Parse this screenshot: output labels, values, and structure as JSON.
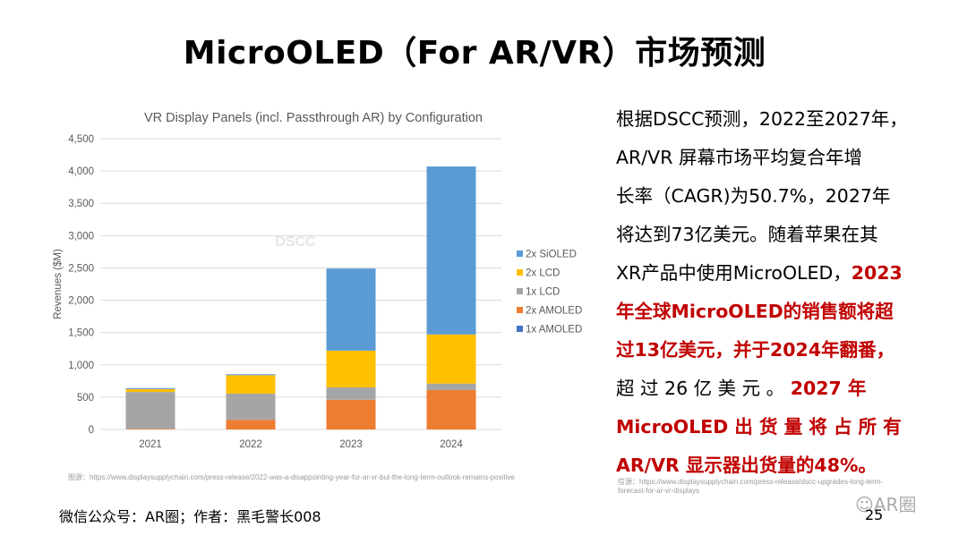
{
  "slide": {
    "title": "MicroOLED（For AR/VR）市场预测",
    "body_lines": [
      [
        {
          "t": "根据DSCC预测，2022至2027年，",
          "red": false
        }
      ],
      [
        {
          "t": "AR/VR 屏幕市场平均复合年增",
          "red": false
        }
      ],
      [
        {
          "t": "长率（CAGR)为50.7%，2027年",
          "red": false
        }
      ],
      [
        {
          "t": "将达到73亿美元。随着苹果在其",
          "red": false
        }
      ],
      [
        {
          "t": "XR产品中使用MicroOLED，",
          "red": false
        },
        {
          "t": "2023",
          "red": true
        }
      ],
      [
        {
          "t": "年全球MicroOLED的销售额将超",
          "red": true
        }
      ],
      [
        {
          "t": "过13亿美元，并于2024年翻番，",
          "red": true
        }
      ],
      [
        {
          "t": "超 过 26 亿 美 元 。 ",
          "red": false
        },
        {
          "t": "2027 年",
          "red": true
        }
      ],
      [
        {
          "t": "MicroOLED 出 货 量 将 占 所 有",
          "red": true
        }
      ],
      [
        {
          "t": "AR/VR 显示器出货量的48%。",
          "red": true
        }
      ]
    ],
    "source_left": "图源：https://www.displaysupplychain.com/press-release/2022-was-a-disappointing-year-for-ar-vr-but-the-long-term-outlook-remains-positive",
    "source_right_1": "信源：https://www.displaysupplychain.com/press-release/dscc-upgrades-long-term-",
    "source_right_2": "forecast-for-ar-vr-displays",
    "footer": "微信公众号：AR圈；作者：黑毛警长008",
    "page_number": "25",
    "watermark": "AR圈"
  },
  "chart_data": {
    "type": "bar",
    "stacked": true,
    "title": "VR Display Panels (incl. Passthrough AR) by Configuration",
    "xlabel": "",
    "ylabel": "Revenues ($M)",
    "ylim": [
      0,
      4500
    ],
    "yticks": [
      "0",
      "500",
      "1,000",
      "1,500",
      "2,000",
      "2,500",
      "3,000",
      "3,500",
      "4,000",
      "4,500"
    ],
    "ytick_values": [
      0,
      500,
      1000,
      1500,
      2000,
      2500,
      3000,
      3500,
      4000,
      4500
    ],
    "grid": true,
    "legend_position": "right",
    "categories": [
      "2021",
      "2022",
      "2023",
      "2024"
    ],
    "series": [
      {
        "name": "1x AMOLED",
        "color": "#4472C4",
        "values": [
          0,
          0,
          0,
          0
        ]
      },
      {
        "name": "2x AMOLED",
        "color": "#ED7D31",
        "values": [
          10,
          150,
          460,
          610
        ]
      },
      {
        "name": "1x LCD",
        "color": "#A5A5A5",
        "values": [
          570,
          405,
          190,
          100
        ]
      },
      {
        "name": "2x LCD",
        "color": "#FFC000",
        "values": [
          45,
          285,
          570,
          760
        ]
      },
      {
        "name": "2x SiOLED",
        "color": "#5B9BD5",
        "values": [
          15,
          15,
          1270,
          2600
        ]
      }
    ],
    "legend_order": [
      "2x SiOLED",
      "2x LCD",
      "1x LCD",
      "2x AMOLED",
      "1x AMOLED"
    ],
    "watermark": "DSCC"
  }
}
